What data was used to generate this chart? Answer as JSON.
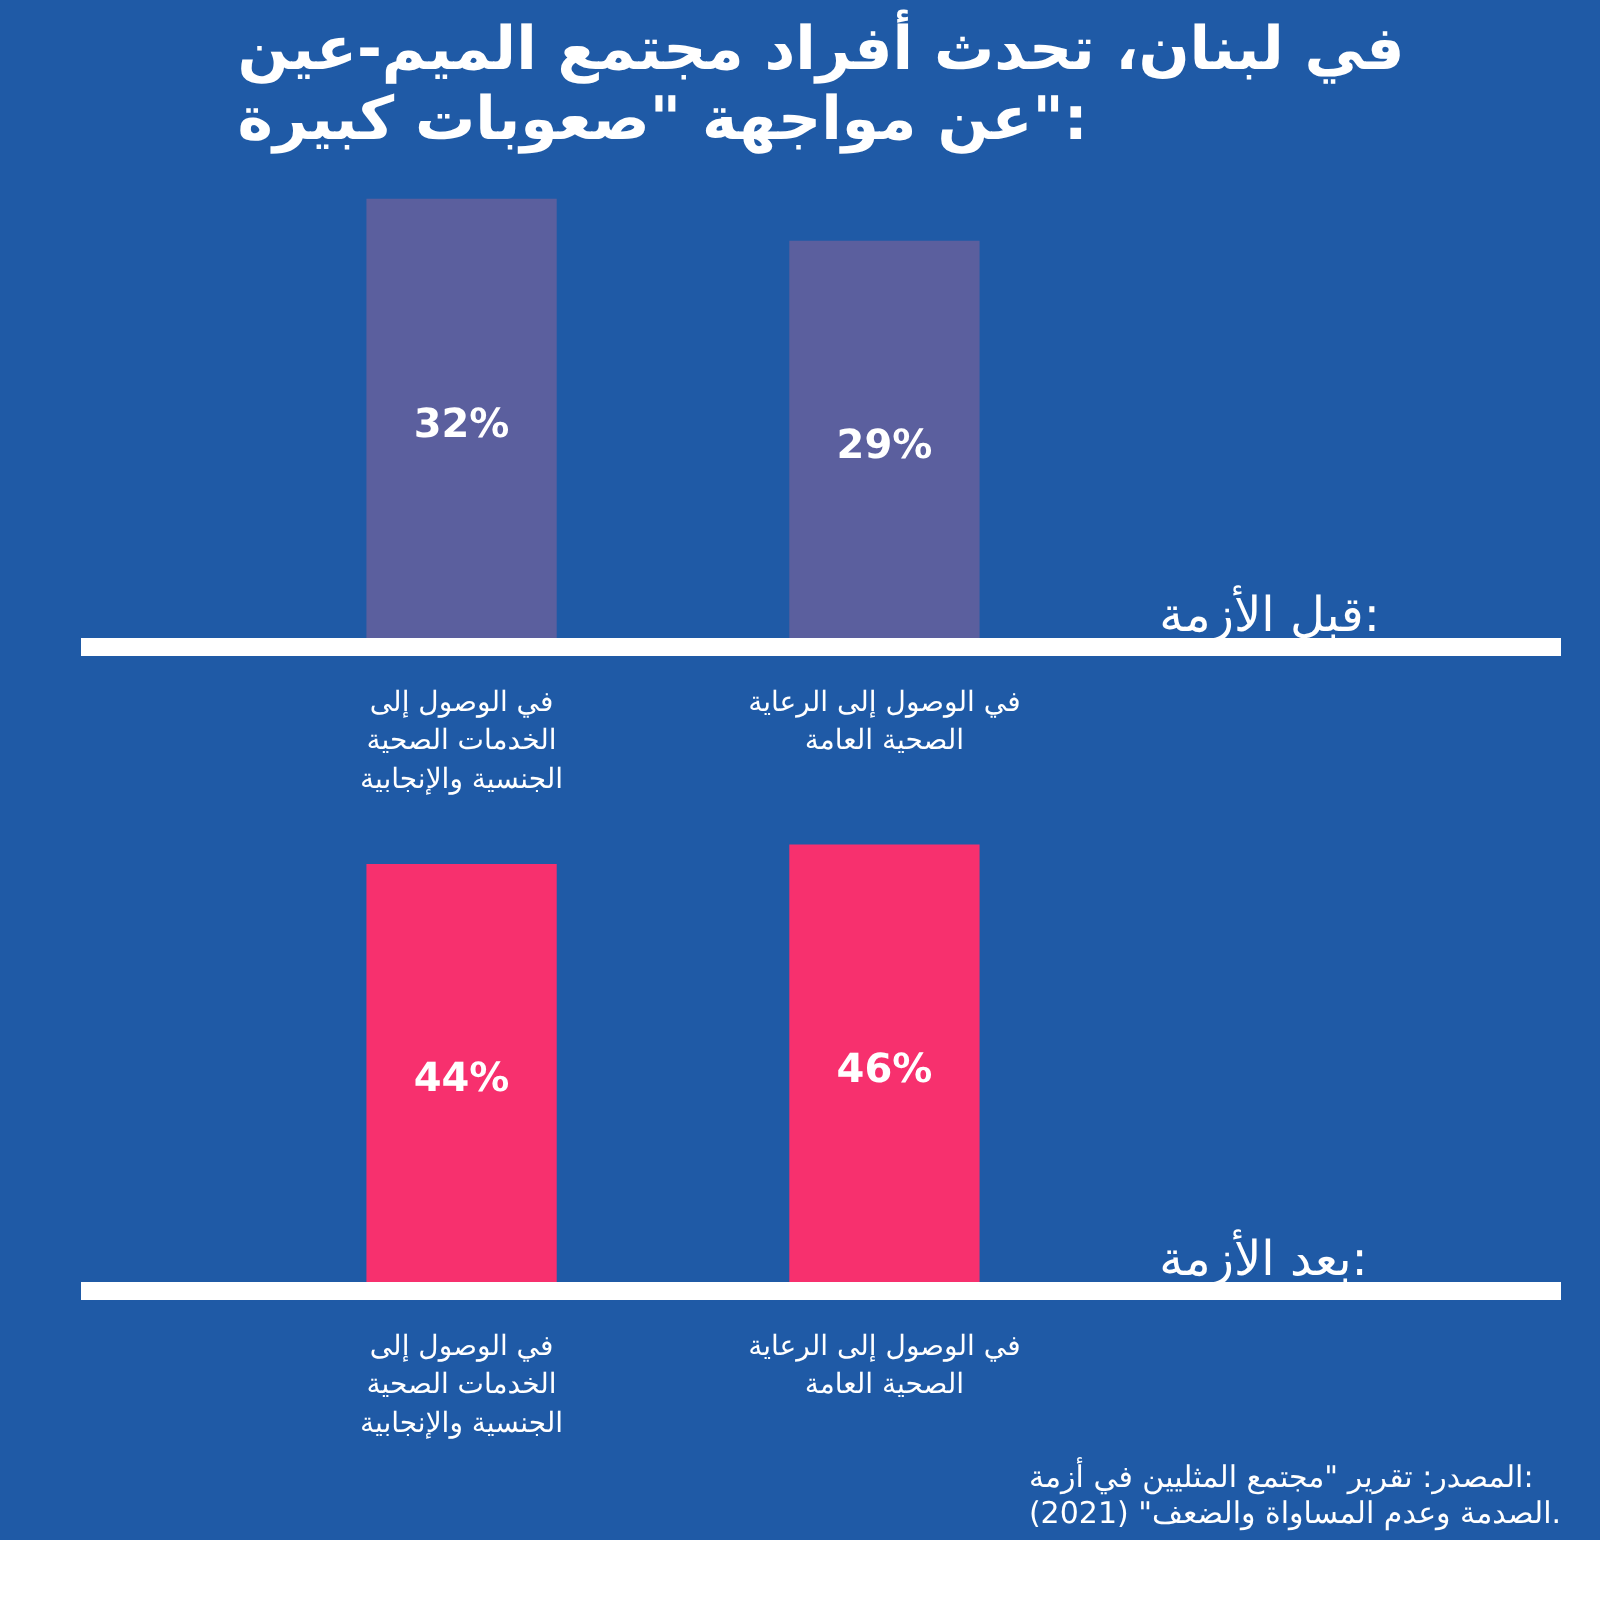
{
  "chart_data": [
    {
      "type": "bar",
      "title": "في لبنان، تحدث أفراد مجتمع الميم-عين\nعن مواجهة \"صعوبات كبيرة\":",
      "ylabel": "قبل الأزمة:",
      "categories": [
        "في الوصول إلى\nالخدمات الصحية\nالجنسية والإنجابية",
        "في الوصول إلى الرعاية\nالصحية العامة"
      ],
      "values": [
        32,
        29
      ],
      "value_labels": [
        "32%",
        "29%"
      ],
      "color": "#5b5f9e",
      "grid": false
    },
    {
      "type": "bar",
      "ylabel": "بعد الأزمة:",
      "categories": [
        "في الوصول إلى\nالخدمات الصحية\nالجنسية والإنجابية",
        "في الوصول إلى الرعاية\nالصحية العامة"
      ],
      "values": [
        44,
        46
      ],
      "value_labels": [
        "44%",
        "46%"
      ],
      "color": "#f7306e",
      "grid": false,
      "annotations": [
        "المصدر: تقرير \"مجتمع المثليين في أزمة:\nالصدمة وعدم المساواة والضعف\" (2021)."
      ]
    }
  ]
}
